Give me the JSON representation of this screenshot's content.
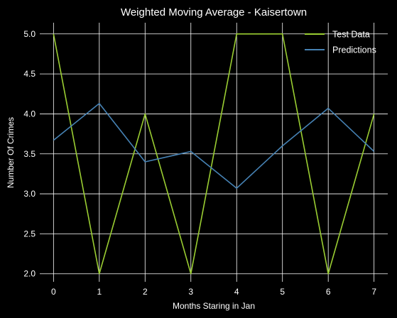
{
  "chart_data": {
    "type": "line",
    "title": "Weighted Moving Average - Kaisertown",
    "xlabel": "Months Staring in Jan",
    "ylabel": "Number Of Crimes",
    "x": [
      0,
      1,
      2,
      3,
      4,
      5,
      6,
      7
    ],
    "xticks": [
      "0",
      "1",
      "2",
      "3",
      "4",
      "5",
      "6",
      "7"
    ],
    "yticks": [
      "2.0",
      "2.5",
      "3.0",
      "3.5",
      "4.0",
      "4.5",
      "5.0"
    ],
    "xlim": [
      -0.3,
      7.3
    ],
    "ylim": [
      1.9,
      5.14
    ],
    "grid": true,
    "legend_position": "top-right",
    "series": [
      {
        "name": "Test Data",
        "color": "#9acd32",
        "values": [
          5,
          2,
          4,
          2,
          5,
          5,
          2,
          4
        ]
      },
      {
        "name": "Predictions",
        "color": "#4682b4",
        "values": [
          3.67,
          4.13,
          3.4,
          3.53,
          3.07,
          3.6,
          4.07,
          3.53
        ]
      }
    ]
  }
}
